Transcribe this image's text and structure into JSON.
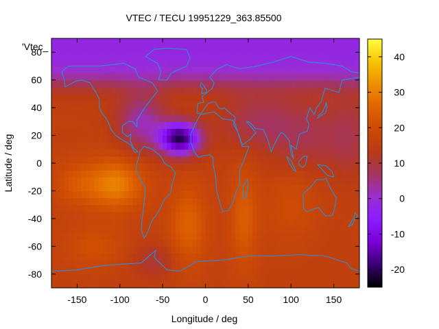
{
  "chart_data": {
    "type": "heatmap",
    "title": "VTEC / TECU 19951229_363.85500",
    "xlabel": "Longitude / deg",
    "ylabel": "Latitude / deg",
    "key_label": "'Vtec_",
    "xlim": [
      -180,
      180
    ],
    "ylim": [
      -90,
      90
    ],
    "zlim": [
      -25,
      45
    ],
    "x_ticks": [
      -150,
      -100,
      -50,
      0,
      50,
      100,
      150
    ],
    "y_ticks": [
      -80,
      -60,
      -40,
      -20,
      0,
      20,
      40,
      60,
      80
    ],
    "cb_ticks": [
      -20,
      -10,
      0,
      10,
      20,
      30,
      40
    ],
    "palette": [
      "#000000",
      "#3a0072",
      "#7a00d6",
      "#8a1cff",
      "#9a2fd0",
      "#a4355e",
      "#b83a16",
      "#cc4a05",
      "#e06400",
      "#ee8f00",
      "#f7c400",
      "#ffff40"
    ],
    "coastline_color": "#2a8fd8",
    "frame_color": "#000000",
    "features": {
      "background_level": 16,
      "polar_cap_level": 0,
      "min_value_near": {
        "lon": -30,
        "lat": 18,
        "value": -22
      },
      "max_value_near": {
        "lon": -105,
        "lat": -15,
        "value": 31
      }
    }
  }
}
